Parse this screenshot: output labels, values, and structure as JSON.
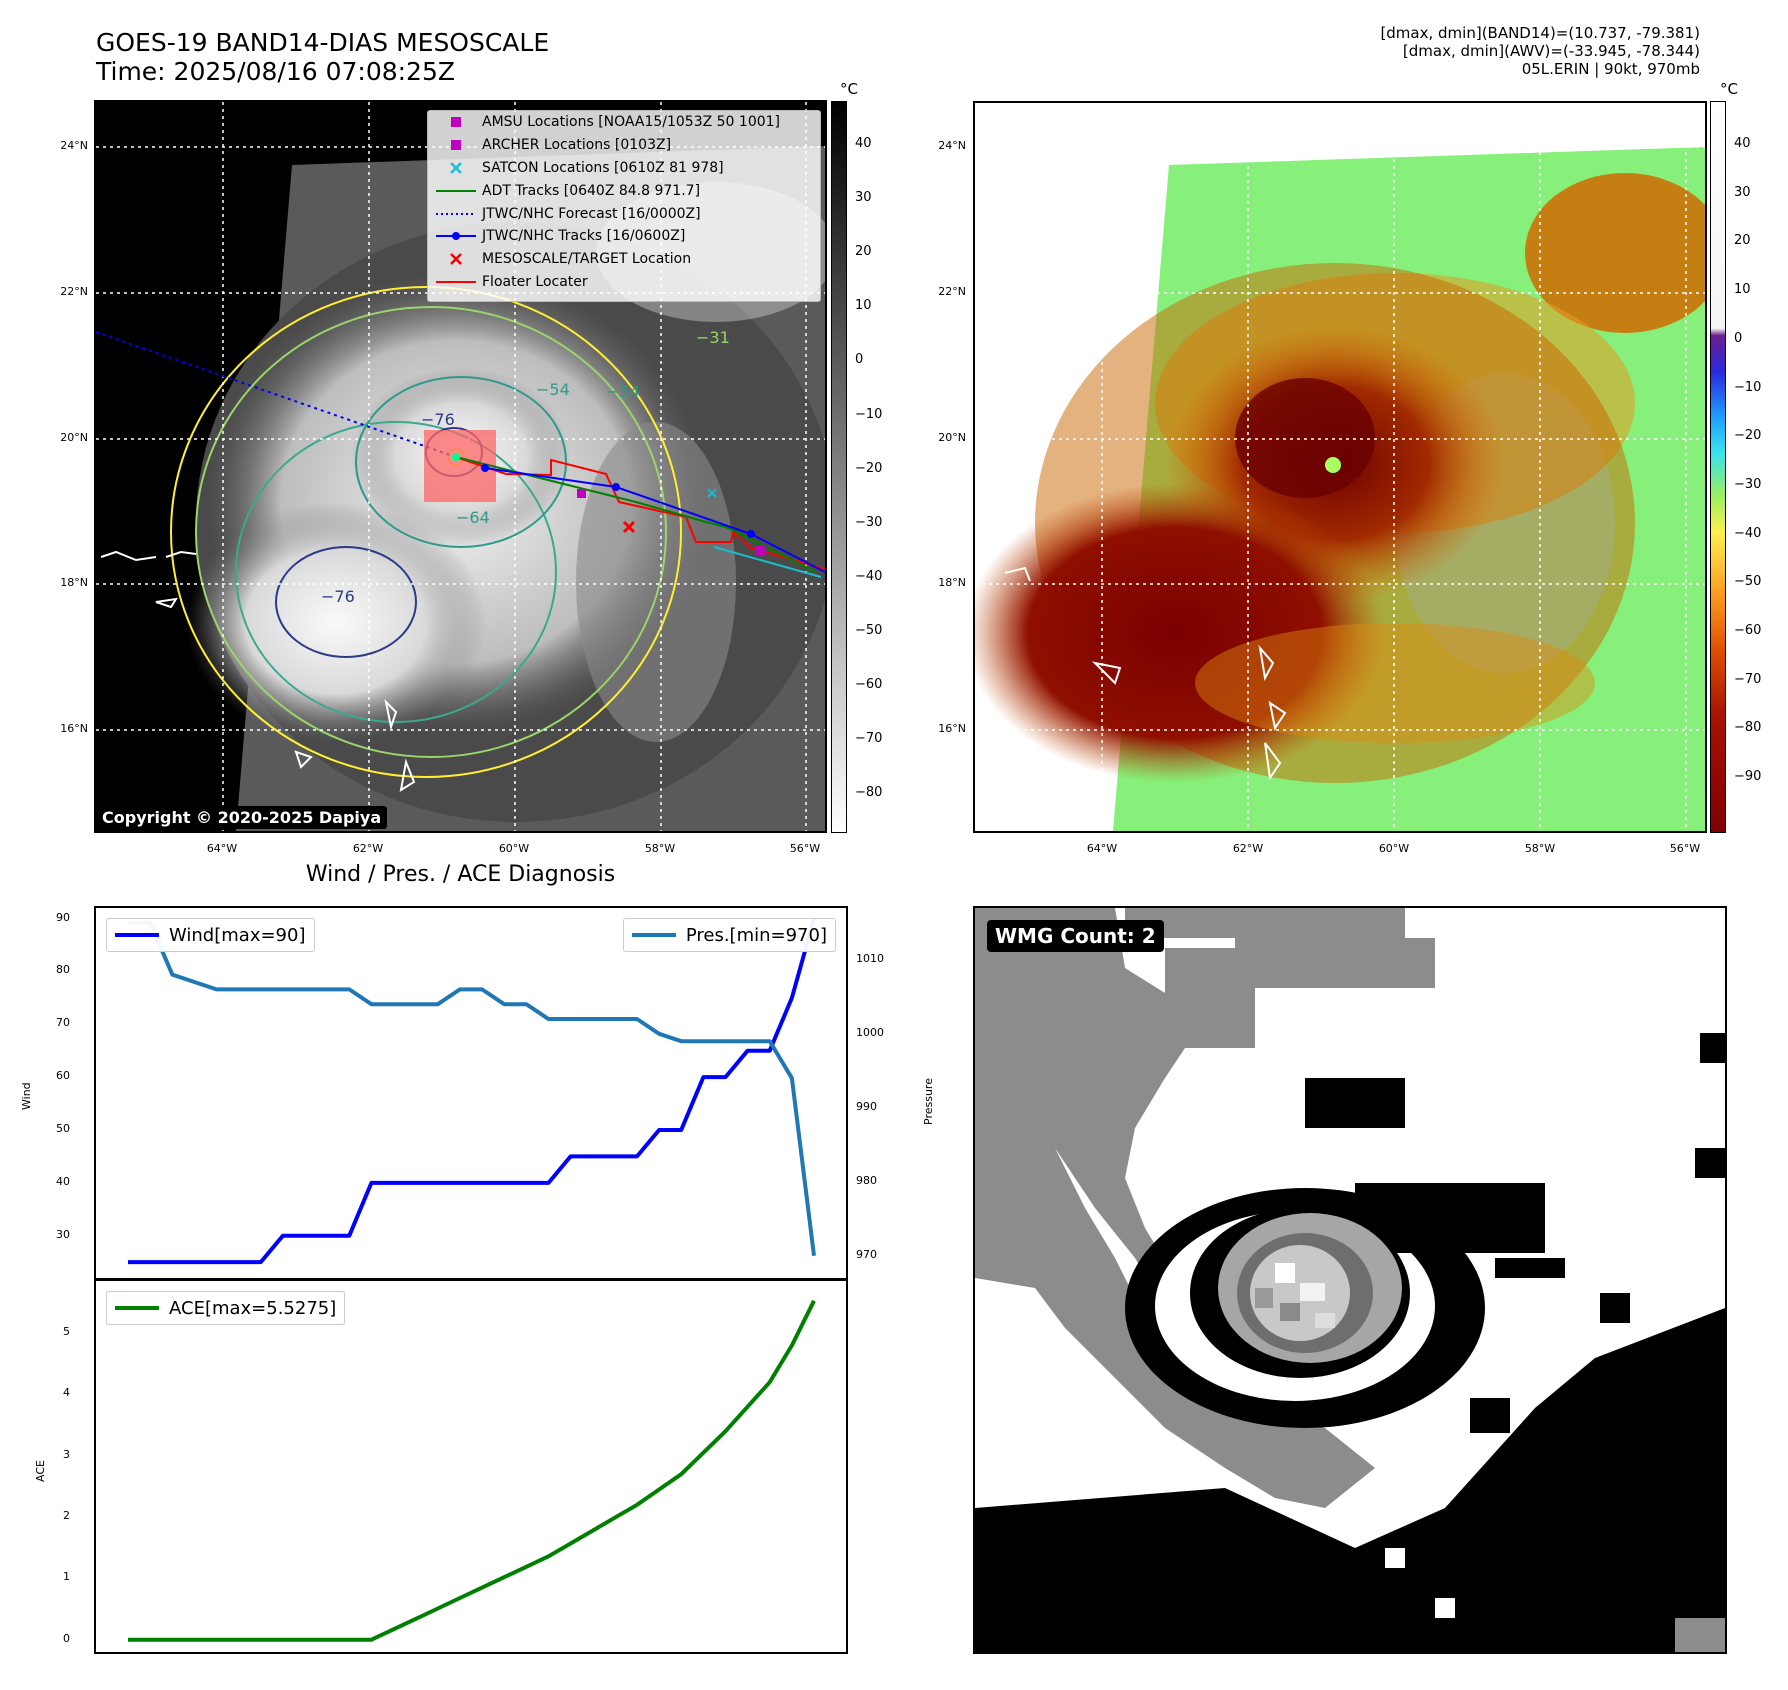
{
  "header": {
    "title_line1": "GOES-19 BAND14-DIAS MESOSCALE",
    "title_line2": "Time: 2025/08/16 07:08:25Z",
    "info_line1": "[dmax, dmin](BAND14)=(10.737, -79.381)",
    "info_line2": "[dmax, dmin](AWV)=(-33.945, -78.344)",
    "info_line3": "05L.ERIN | 90kt, 970mb"
  },
  "map_axes": {
    "lat_labels": [
      "24°N",
      "22°N",
      "20°N",
      "18°N",
      "16°N"
    ],
    "lon_labels": [
      "64°W",
      "62°W",
      "60°W",
      "58°W",
      "56°W"
    ]
  },
  "left_map": {
    "colorbar_unit": "°C",
    "colorbar_ticks": [
      "40",
      "30",
      "20",
      "10",
      "0",
      "−10",
      "−20",
      "−30",
      "−40",
      "−50",
      "−60",
      "−70",
      "−80"
    ],
    "contour_labels": [
      "−76",
      "−54",
      "−64",
      "−76",
      "−31",
      "−54"
    ],
    "copyright": "Copyright © 2020-2025 Dapiya",
    "legend": [
      {
        "label": "AMSU Locations [NOAA15/1053Z 50 1001]",
        "symbol": "square",
        "color": "#bf00bf"
      },
      {
        "label": "ARCHER Locations [0103Z]",
        "symbol": "square",
        "color": "#bf00bf"
      },
      {
        "label": "SATCON Locations [0610Z 81 978]",
        "symbol": "x",
        "color": "#17becf"
      },
      {
        "label": "ADT Tracks [0640Z 84.8 971.7]",
        "symbol": "line",
        "color": "#008000"
      },
      {
        "label": "JTWC/NHC Forecast [16/0000Z]",
        "symbol": "dotted",
        "color": "#0000ff"
      },
      {
        "label": "JTWC/NHC Tracks [16/0600Z]",
        "symbol": "line-dot",
        "color": "#0000ff"
      },
      {
        "label": "MESOSCALE/TARGET Location",
        "symbol": "x",
        "color": "#ff0000"
      },
      {
        "label": "Floater Locater",
        "symbol": "line",
        "color": "#ff0000"
      }
    ]
  },
  "right_map": {
    "colorbar_unit": "°C",
    "colorbar_ticks": [
      "40",
      "30",
      "20",
      "10",
      "0",
      "−10",
      "−20",
      "−30",
      "−40",
      "−50",
      "−60",
      "−70",
      "−80",
      "−90"
    ]
  },
  "wmg_panel": {
    "badge": "WMG Count: 2"
  },
  "chart_data": [
    {
      "type": "line",
      "title": "Wind / Pres. / ACE Diagnosis",
      "ylabel": "Wind",
      "y2label": "Pressure",
      "ylim": [
        22,
        92
      ],
      "y2lim": [
        967,
        1017
      ],
      "yticks": [
        30,
        40,
        50,
        60,
        70,
        80,
        90
      ],
      "y2ticks": [
        970,
        980,
        990,
        1000,
        1010
      ],
      "series": [
        {
          "name": "Wind[max=90]",
          "color": "#0000ff",
          "values": [
            25,
            25,
            25,
            25,
            25,
            25,
            25,
            30,
            30,
            30,
            30,
            40,
            40,
            40,
            40,
            40,
            40,
            40,
            40,
            40,
            45,
            45,
            45,
            45,
            50,
            50,
            60,
            60,
            65,
            65,
            75,
            90
          ]
        },
        {
          "name": "Pres.[min=970]",
          "color": "#1f77b4",
          "values": [
            1015,
            1015,
            1008,
            1007,
            1006,
            1006,
            1006,
            1006,
            1006,
            1006,
            1006,
            1004,
            1004,
            1004,
            1004,
            1006,
            1006,
            1004,
            1004,
            1002,
            1002,
            1002,
            1002,
            1002,
            1000,
            999,
            999,
            999,
            999,
            999,
            994,
            970
          ]
        }
      ]
    },
    {
      "type": "line",
      "ylabel": "ACE",
      "ylim": [
        -0.2,
        5.85
      ],
      "yticks": [
        0,
        1,
        2,
        3,
        4,
        5
      ],
      "series": [
        {
          "name": "ACE[max=5.5275]",
          "color": "#008000",
          "values": [
            0,
            0,
            0,
            0,
            0,
            0,
            0,
            0,
            0,
            0,
            0,
            0,
            0.17,
            0.34,
            0.51,
            0.68,
            0.85,
            1.02,
            1.19,
            1.36,
            1.57,
            1.78,
            1.99,
            2.2,
            2.45,
            2.7,
            3.05,
            3.4,
            3.8,
            4.2,
            4.8,
            5.5275
          ]
        }
      ]
    }
  ]
}
